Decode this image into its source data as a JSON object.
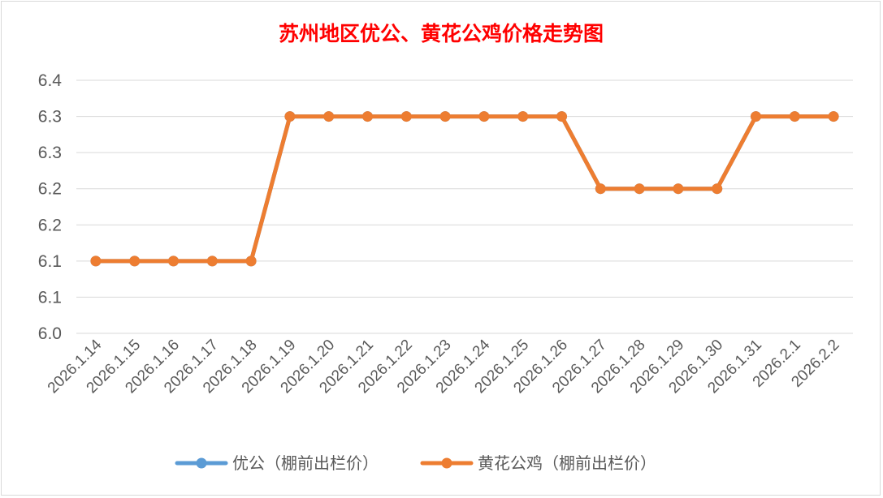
{
  "chart_data": {
    "type": "line",
    "title": "苏州地区优公、黄花公鸡价格走势图",
    "categories": [
      "2026.1.14",
      "2026.1.15",
      "2026.1.16",
      "2026.1.17",
      "2026.1.18",
      "2026.1.19",
      "2026.1.20",
      "2026.1.21",
      "2026.1.22",
      "2026.1.23",
      "2026.1.24",
      "2026.1.25",
      "2026.1.26",
      "2026.1.27",
      "2026.1.28",
      "2026.1.29",
      "2026.1.30",
      "2026.1.31",
      "2026.2.1",
      "2026.2.2"
    ],
    "y_ticks": [
      {
        "value": 6.0,
        "label": "6.0"
      },
      {
        "value": 6.05,
        "label": "6.1"
      },
      {
        "value": 6.1,
        "label": "6.1"
      },
      {
        "value": 6.15,
        "label": "6.2"
      },
      {
        "value": 6.2,
        "label": "6.2"
      },
      {
        "value": 6.25,
        "label": "6.3"
      },
      {
        "value": 6.3,
        "label": "6.3"
      },
      {
        "value": 6.35,
        "label": "6.4"
      }
    ],
    "ylim": [
      6.0,
      6.35
    ],
    "grid": true,
    "legend_position": "bottom",
    "series": [
      {
        "name": "优公（棚前出栏价）",
        "color": "#5b9bd5",
        "values": [
          6.1,
          6.1,
          6.1,
          6.1,
          6.1,
          6.3,
          6.3,
          6.3,
          6.3,
          6.3,
          6.3,
          6.3,
          6.3,
          6.2,
          6.2,
          6.2,
          6.2,
          6.3,
          6.3,
          6.3
        ]
      },
      {
        "name": "黄花公鸡（棚前出栏价）",
        "color": "#ed7d31",
        "values": [
          6.1,
          6.1,
          6.1,
          6.1,
          6.1,
          6.3,
          6.3,
          6.3,
          6.3,
          6.3,
          6.3,
          6.3,
          6.3,
          6.2,
          6.2,
          6.2,
          6.2,
          6.3,
          6.3,
          6.3
        ]
      }
    ]
  }
}
